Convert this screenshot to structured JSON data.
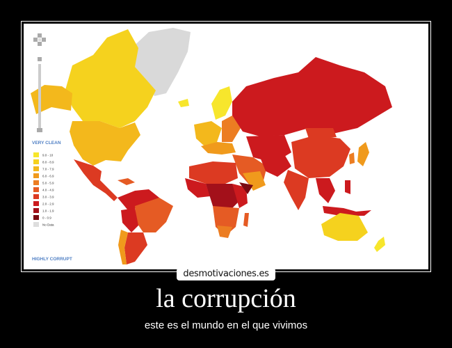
{
  "map": {
    "legend_top_label": "VERY CLEAN",
    "legend_bottom_label": "HIGHLY CORRUPT",
    "legend": [
      {
        "range": "9.0 - 10",
        "color": "#f7e62c"
      },
      {
        "range": "8.0 - 8.9",
        "color": "#f5d21e"
      },
      {
        "range": "7.0 - 7.9",
        "color": "#f3b81c"
      },
      {
        "range": "6.0 - 6.9",
        "color": "#f09a1c"
      },
      {
        "range": "5.0 - 5.9",
        "color": "#ec7d22"
      },
      {
        "range": "4.0 - 4.9",
        "color": "#e55b24"
      },
      {
        "range": "3.0 - 3.9",
        "color": "#dc3a22"
      },
      {
        "range": "2.0 - 2.9",
        "color": "#cc1a1e"
      },
      {
        "range": "1.0 - 1.9",
        "color": "#a3101a"
      },
      {
        "range": "0 - 0.9",
        "color": "#7a0a12"
      },
      {
        "range": "No Data",
        "color": "#dddddd"
      }
    ]
  },
  "watermark": "desmotivaciones.es",
  "title": "la corrupción",
  "subtitle": "este es el mundo en el que vivimos"
}
